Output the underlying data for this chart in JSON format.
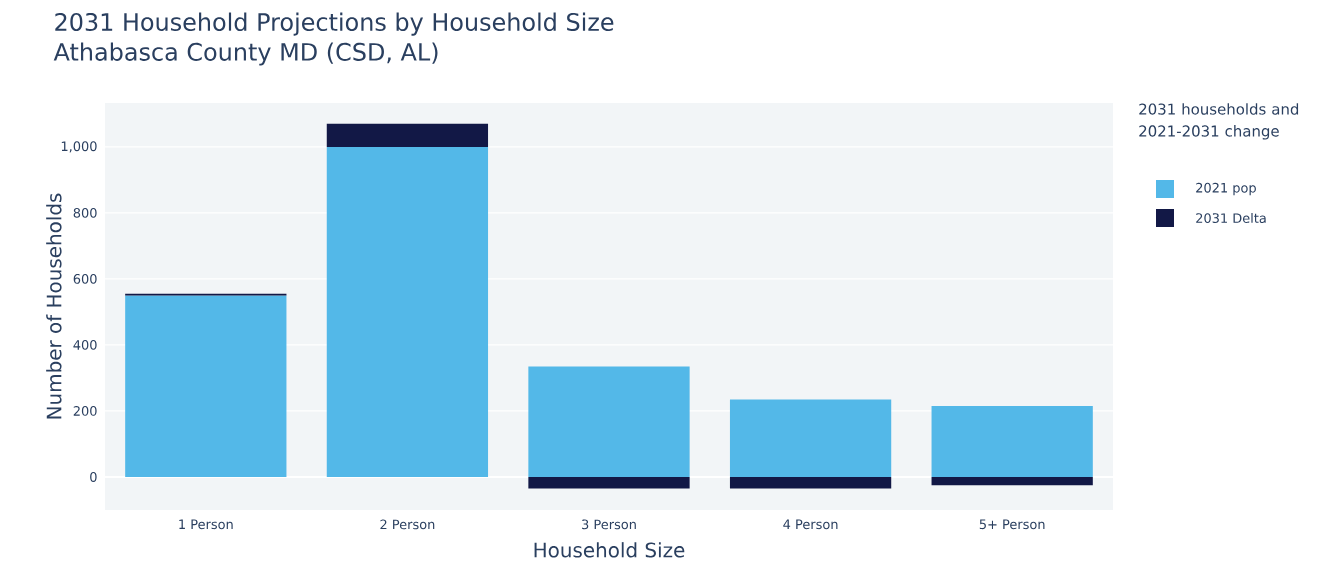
{
  "chart_data": {
    "type": "bar",
    "title": "2031 Household Projections by Household Size",
    "subtitle": "Athabasca County MD (CSD, AL)",
    "xlabel": "Household Size",
    "ylabel": "Number of Households",
    "legend_title": "2031 households and 2021-2031 change",
    "categories": [
      "1 Person",
      "2 Person",
      "3 Person",
      "4 Person",
      "5+ Person"
    ],
    "series": [
      {
        "name": "2021 pop",
        "color": "#53b8e8",
        "values": [
          550,
          1000,
          335,
          235,
          215
        ]
      },
      {
        "name": "2031 Delta",
        "color": "#121846",
        "values": [
          5,
          70,
          -35,
          -35,
          -25
        ]
      }
    ],
    "stacked": true,
    "ylim": [
      -100,
      1133
    ],
    "yticks": [
      0,
      200,
      400,
      600,
      800,
      {
        "value": 1000,
        "label": "1,000"
      }
    ],
    "grid": "y",
    "legend": "right"
  }
}
